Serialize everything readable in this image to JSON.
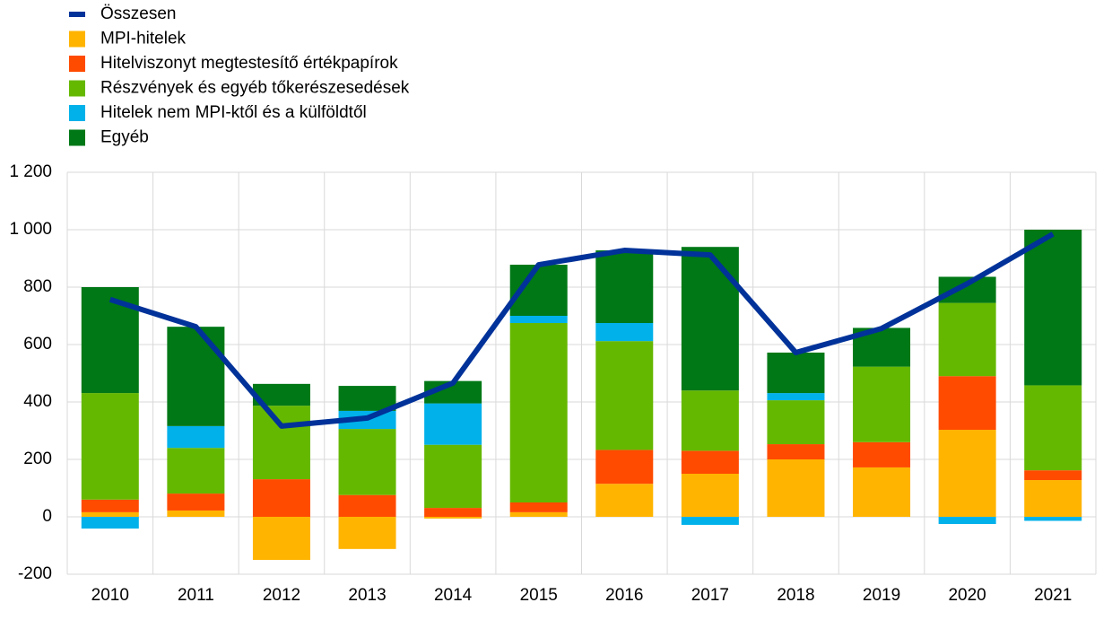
{
  "chart_data": {
    "type": "bar",
    "stacked": true,
    "categories": [
      "2010",
      "2011",
      "2012",
      "2013",
      "2014",
      "2015",
      "2016",
      "2017",
      "2018",
      "2019",
      "2020",
      "2021"
    ],
    "line": {
      "name": "Összesen",
      "color": "#003299",
      "values": [
        757,
        662,
        316,
        344,
        466,
        878,
        928,
        912,
        572,
        656,
        812,
        985
      ]
    },
    "series": [
      {
        "name": "MPI-hitelek",
        "color": "#ffb400",
        "values": [
          16,
          22,
          -150,
          -112,
          -6,
          16,
          115,
          150,
          200,
          172,
          303,
          128
        ]
      },
      {
        "name": "Hitelviszonyt megtestesítő értékpapírok",
        "color": "#ff4b00",
        "values": [
          44,
          59,
          131,
          76,
          31,
          34,
          118,
          80,
          53,
          88,
          187,
          34
        ]
      },
      {
        "name": "Részvények és egyéb tőkerészesedések",
        "color": "#65b800",
        "values": [
          371,
          159,
          256,
          230,
          220,
          625,
          379,
          210,
          153,
          263,
          255,
          296
        ]
      },
      {
        "name": "Hitelek nem MPI-ktől és a külföldtől",
        "color": "#00b1ea",
        "values": [
          -41,
          76,
          0,
          63,
          144,
          25,
          63,
          -28,
          25,
          0,
          -25,
          -14
        ]
      },
      {
        "name": "Egyéb",
        "color": "#007816",
        "values": [
          369,
          346,
          76,
          87,
          78,
          178,
          253,
          500,
          141,
          135,
          91,
          542
        ]
      }
    ],
    "ylim": [
      -200,
      1200
    ],
    "yticks": [
      {
        "value": -200,
        "label": "-200"
      },
      0,
      200,
      400,
      600,
      800,
      {
        "value": 1000,
        "label": "1 000"
      },
      {
        "value": 1200,
        "label": "1 200"
      }
    ],
    "grid": true
  }
}
